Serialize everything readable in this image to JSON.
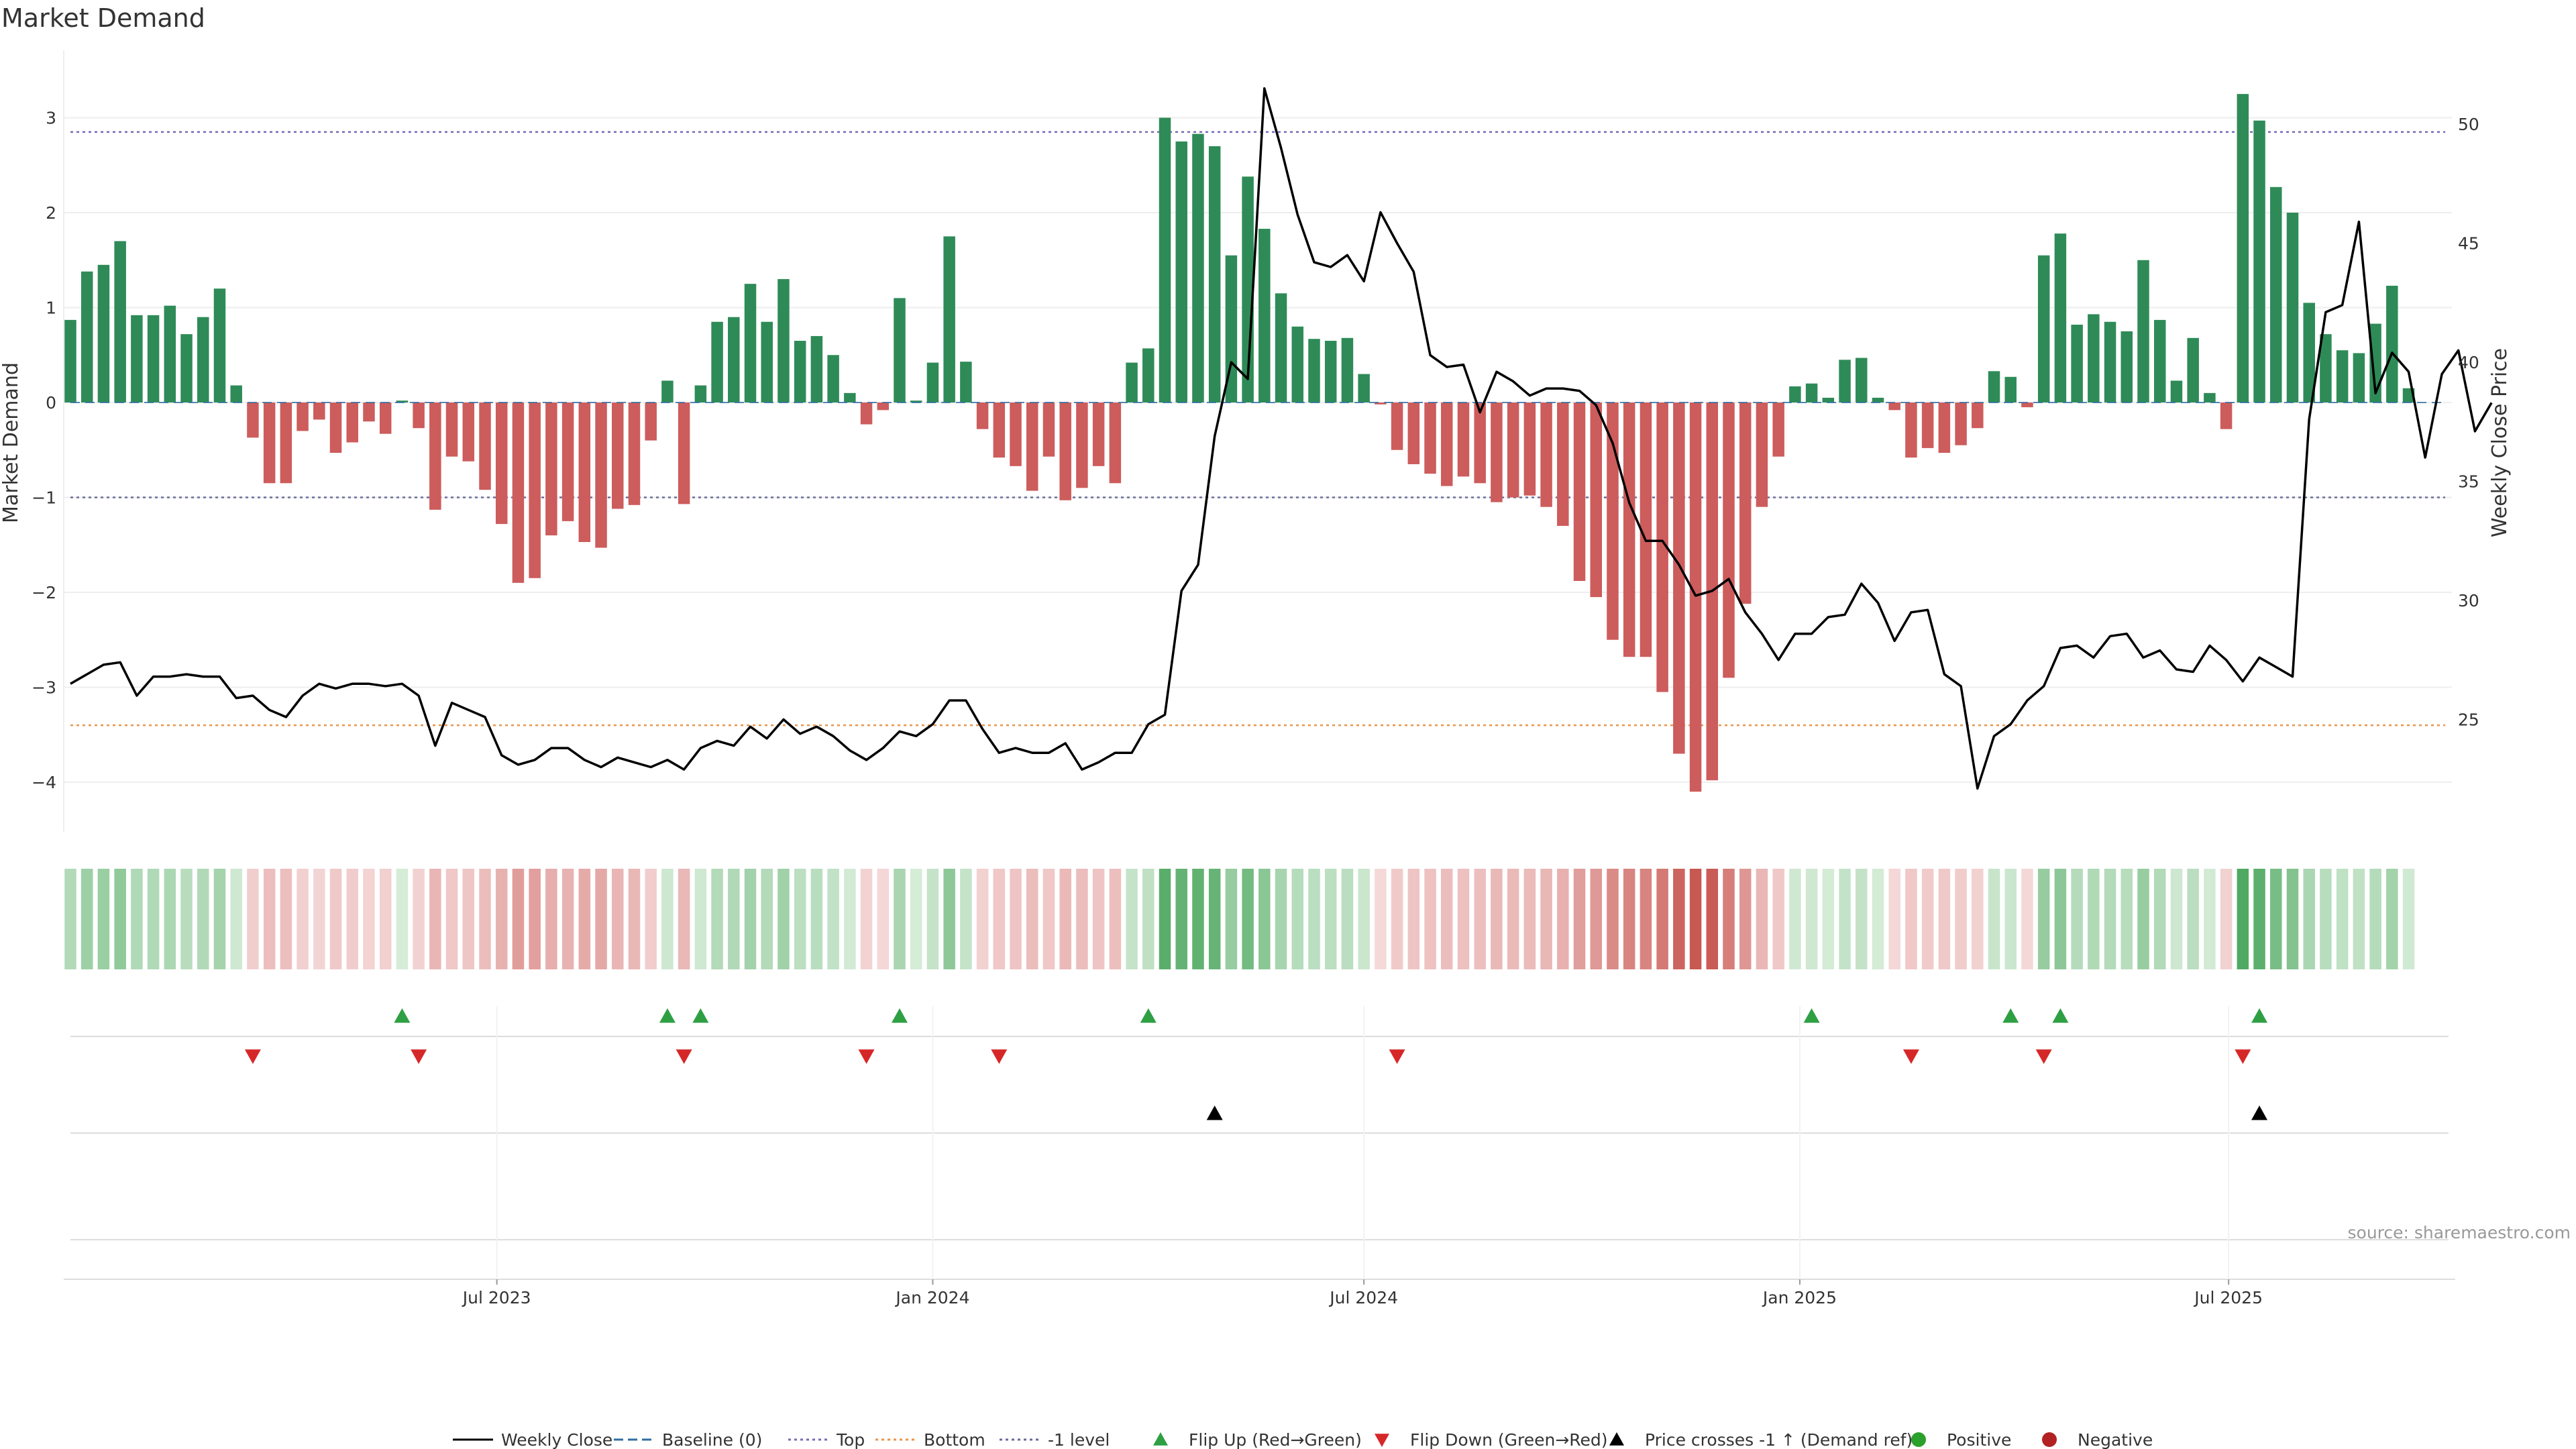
{
  "chart_data": {
    "type": "bar",
    "title": "Market Demand",
    "ylabel": "Market Demand",
    "y2label": "Weekly Close Price",
    "ylim": [
      -4.5,
      3.7
    ],
    "y2lim": [
      21.5,
      53.0
    ],
    "yticks": [
      3,
      2,
      1,
      0,
      -1,
      -2,
      -3,
      -4
    ],
    "ytick_labels": [
      "3",
      "2",
      "1",
      "0",
      "−1",
      "−2",
      "−3",
      "−4"
    ],
    "y2ticks": [
      50,
      45,
      40,
      35,
      30,
      25
    ],
    "y2tick_labels": [
      "50",
      "45",
      "40",
      "35",
      "30",
      "25"
    ],
    "x_start": "2023-01-02",
    "x_end": "2025-11-10",
    "date_ticks": [
      {
        "date": "2023-07-01",
        "label": "Jul 2023"
      },
      {
        "date": "2024-01-01",
        "label": "Jan 2024"
      },
      {
        "date": "2024-07-01",
        "label": "Jul 2024"
      },
      {
        "date": "2025-01-01",
        "label": "Jan 2025"
      },
      {
        "date": "2025-07-01",
        "label": "Jul 2025"
      }
    ],
    "reference_lines": [
      {
        "name": "Top",
        "y": 2.85,
        "color": "#7a6ab8"
      },
      {
        "name": "-1 level",
        "y": -1.0,
        "color": "#6a6a9a"
      },
      {
        "name": "Bottom",
        "y": -3.4,
        "color": "#e8954a"
      }
    ],
    "series": [
      {
        "name": "Market Demand",
        "kind": "bar",
        "values": [
          0.87,
          1.38,
          1.45,
          1.7,
          0.92,
          0.92,
          1.02,
          0.72,
          0.9,
          1.2,
          0.18,
          -0.37,
          -0.85,
          -0.85,
          -0.3,
          -0.18,
          -0.53,
          -0.42,
          -0.2,
          -0.33,
          0.02,
          -0.27,
          -1.13,
          -0.57,
          -0.62,
          -0.92,
          -1.28,
          -1.9,
          -1.85,
          -1.4,
          -1.25,
          -1.47,
          -1.53,
          -1.12,
          -1.08,
          -0.4,
          0.23,
          -1.07,
          0.18,
          0.85,
          0.9,
          1.25,
          0.85,
          1.3,
          0.65,
          0.7,
          0.5,
          0.1,
          -0.23,
          -0.08,
          1.1,
          0.02,
          0.42,
          1.75,
          0.43,
          -0.28,
          -0.58,
          -0.67,
          -0.93,
          -0.57,
          -1.03,
          -0.9,
          -0.67,
          -0.85,
          0.42,
          0.57,
          3.0,
          2.75,
          2.83,
          2.7,
          1.55,
          2.38,
          1.83,
          1.15,
          0.8,
          0.67,
          0.65,
          0.68,
          0.3,
          -0.02,
          -0.5,
          -0.65,
          -0.75,
          -0.88,
          -0.78,
          -0.85,
          -1.05,
          -1.0,
          -0.98,
          -1.1,
          -1.3,
          -1.88,
          -2.05,
          -2.5,
          -2.68,
          -2.68,
          -3.05,
          -3.7,
          -4.1,
          -3.98,
          -2.9,
          -2.12,
          -1.1,
          -0.57,
          0.17,
          0.2,
          0.05,
          0.45,
          0.47,
          0.05,
          -0.08,
          -0.58,
          -0.48,
          -0.53,
          -0.45,
          -0.27,
          0.33,
          0.27,
          -0.05,
          1.55,
          1.78,
          0.82,
          0.93,
          0.85,
          0.75,
          1.5,
          0.87,
          0.23,
          0.68,
          0.1,
          -0.28,
          3.25,
          2.97,
          2.27,
          2.0,
          1.05,
          0.72,
          0.55,
          0.52,
          0.83,
          1.23,
          0.15
        ]
      },
      {
        "name": "Weekly Close",
        "kind": "line",
        "axis": "right",
        "values": [
          26.5,
          26.9,
          27.3,
          27.4,
          26.0,
          26.8,
          26.8,
          26.9,
          26.8,
          26.8,
          25.9,
          26.0,
          25.4,
          25.1,
          26.0,
          26.5,
          26.3,
          26.5,
          26.5,
          26.4,
          26.5,
          26.0,
          23.9,
          25.7,
          25.4,
          25.1,
          23.5,
          23.1,
          23.3,
          23.8,
          23.8,
          23.3,
          23.0,
          23.4,
          23.2,
          23.0,
          23.3,
          22.9,
          23.8,
          24.1,
          23.9,
          24.7,
          24.2,
          25.0,
          24.4,
          24.7,
          24.3,
          23.7,
          23.3,
          23.8,
          24.5,
          24.3,
          24.8,
          25.8,
          25.8,
          24.6,
          23.6,
          23.8,
          23.6,
          23.6,
          24.0,
          22.9,
          23.2,
          23.6,
          23.6,
          24.8,
          25.2,
          30.4,
          31.5,
          36.9,
          40.0,
          39.3,
          51.5,
          49.0,
          46.2,
          44.2,
          44.0,
          44.5,
          43.4,
          46.3,
          45.0,
          43.8,
          40.3,
          39.8,
          39.9,
          37.9,
          39.6,
          39.2,
          38.6,
          38.9,
          38.9,
          38.8,
          38.2,
          36.6,
          34.1,
          32.5,
          32.5,
          31.5,
          30.2,
          30.4,
          30.9,
          29.5,
          28.6,
          27.5,
          28.6,
          28.6,
          29.3,
          29.4,
          30.7,
          29.9,
          28.3,
          29.5,
          29.6,
          26.9,
          26.4,
          22.1,
          24.3,
          24.8,
          25.8,
          26.4,
          28.0,
          28.1,
          27.6,
          28.5,
          28.6,
          27.6,
          27.9,
          27.1,
          27.0,
          28.1,
          27.5,
          26.6,
          27.6,
          27.2,
          26.8,
          37.6,
          42.1,
          42.4,
          45.9,
          38.7,
          40.4,
          39.6,
          36.0,
          39.5,
          40.5,
          37.1,
          38.3
        ]
      }
    ],
    "flip_up_weeks": [
      20,
      36,
      38,
      50,
      65,
      105,
      117,
      120,
      132
    ],
    "flip_down_weeks": [
      11,
      21,
      37,
      48,
      56,
      80,
      111,
      119,
      131
    ],
    "price_cross_weeks": [
      69,
      132
    ],
    "legend": [
      {
        "label": "Weekly Close",
        "symbol": "line-solid",
        "color": "#000000"
      },
      {
        "label": "Baseline (0)",
        "symbol": "line-dashed",
        "color": "#2e6da4"
      },
      {
        "label": "Top",
        "symbol": "line-dotted",
        "color": "#7a6ab8"
      },
      {
        "label": "Bottom",
        "symbol": "line-dotted",
        "color": "#e8954a"
      },
      {
        "label": "-1 level",
        "symbol": "line-dotted",
        "color": "#6a6a9a"
      },
      {
        "label": "Flip Up (Red→Green)",
        "symbol": "triangle-up",
        "color": "#2ea043"
      },
      {
        "label": "Flip Down (Green→Red)",
        "symbol": "triangle-down",
        "color": "#d62728"
      },
      {
        "label": "Price crosses -1 ↑ (Demand ref)",
        "symbol": "triangle-up",
        "color": "#000000"
      },
      {
        "label": "Positive",
        "symbol": "circle",
        "color": "#2ca02c"
      },
      {
        "label": "Negative",
        "symbol": "circle",
        "color": "#b22222"
      }
    ],
    "legend_position": "bottom-center",
    "source": "source: sharemaestro.com",
    "colors": {
      "positive": "#2e8b57",
      "negative": "#cd5c5c",
      "price": "#000000",
      "grid": "#eeeeee"
    }
  }
}
